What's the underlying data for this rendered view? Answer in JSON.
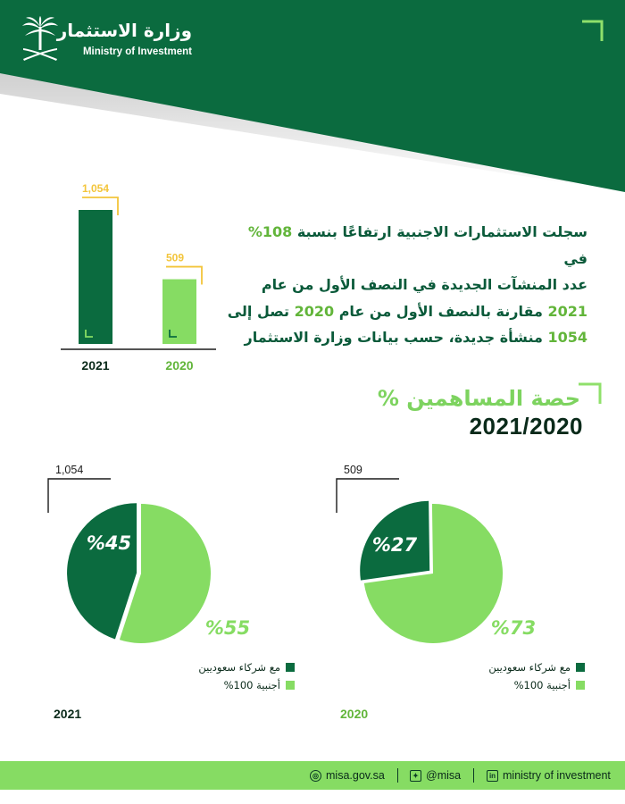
{
  "header": {
    "org_name_ar": "وزارة الاستثمار",
    "org_name_en": "Ministry of Investment"
  },
  "intro": {
    "line1_pre": "سجلت الاستثمارات الاجنبية ارتفاعًا بنسبة ",
    "line1_hl": "108%",
    "line1_post": " في",
    "line2": "عدد المنشآت الجديدة في النصف الأول من عام",
    "line3_hl1": "2021",
    "line3_mid": " مقارنة بالنصف الأول من عام ",
    "line3_hl2": "2020",
    "line3_post": " تصل إلى",
    "line4_hl": "1054",
    "line4_post": " منشأة جديدة، حسب بيانات وزارة الاستثمار"
  },
  "section": {
    "title": "حصة المساهمين %",
    "period": "2021/2020"
  },
  "legend": {
    "saudi_partners": "مع شركاء سعوديين",
    "foreign_100": "أجنبية 100%"
  },
  "colors": {
    "dark_green": "#0b6b3f",
    "light_green": "#86dc63",
    "footer_green": "#86dc63",
    "bracket_yellow": "#f3c53b"
  },
  "chart_data": [
    {
      "type": "bar",
      "categories": [
        "2021",
        "2020"
      ],
      "values": [
        1054,
        509
      ],
      "value_labels": [
        "1,054",
        "509"
      ]
    },
    {
      "type": "pie",
      "year": "2021",
      "total_label": "1,054",
      "labels": [
        "مع شركاء سعوديين",
        "أجنبية 100%"
      ],
      "values": [
        45,
        55
      ],
      "value_labels": [
        "%45",
        "%55"
      ]
    },
    {
      "type": "pie",
      "year": "2020",
      "total_label": "509",
      "labels": [
        "مع شركاء سعوديين",
        "أجنبية 100%"
      ],
      "values": [
        27,
        73
      ],
      "value_labels": [
        "%27",
        "%73"
      ]
    }
  ],
  "footer": {
    "website": "misa.gov.sa",
    "twitter": "@misa",
    "linkedin": "ministry of investment"
  }
}
